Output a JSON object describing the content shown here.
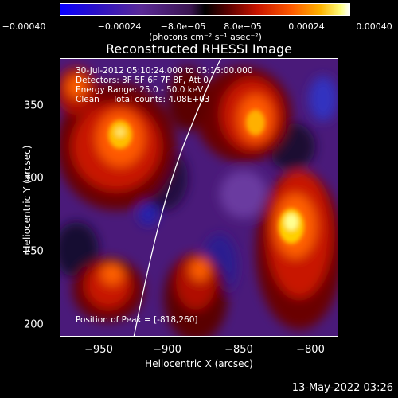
{
  "colorbar": {
    "tick_labels": [
      "−0.00040",
      "−0.00024",
      "−8.0e−05",
      "8.0e−05",
      "0.00024",
      "0.00040"
    ],
    "unit_label": "(photons cm⁻² s⁻¹ asec⁻²)",
    "colors": [
      "#0a00ff",
      "#5a2a96",
      "#000000",
      "#c81400",
      "#ff5a00",
      "#ffb400",
      "#ffffff"
    ]
  },
  "title": "Reconstructed RHESSI Image",
  "info_lines": [
    "30-Jul-2012 05:10:24.000 to 05:15:00.000",
    "Detectors: 3F 5F 6F 7F 8F, Att 0",
    "Energy Range: 25.0 - 50.0 keV",
    "Clean     Total counts: 4.08E+03"
  ],
  "peak_label": "Position of Peak = [-818,260]",
  "x_axis": {
    "label": "Heliocentric X (arcsec)",
    "ticks": [
      "−950",
      "−900",
      "−850",
      "−800"
    ]
  },
  "y_axis": {
    "label": "Heliocentric Y (arcsec)",
    "ticks": [
      "350",
      "300",
      "250",
      "200"
    ]
  },
  "timestamp": "13-May-2022 03:26"
}
